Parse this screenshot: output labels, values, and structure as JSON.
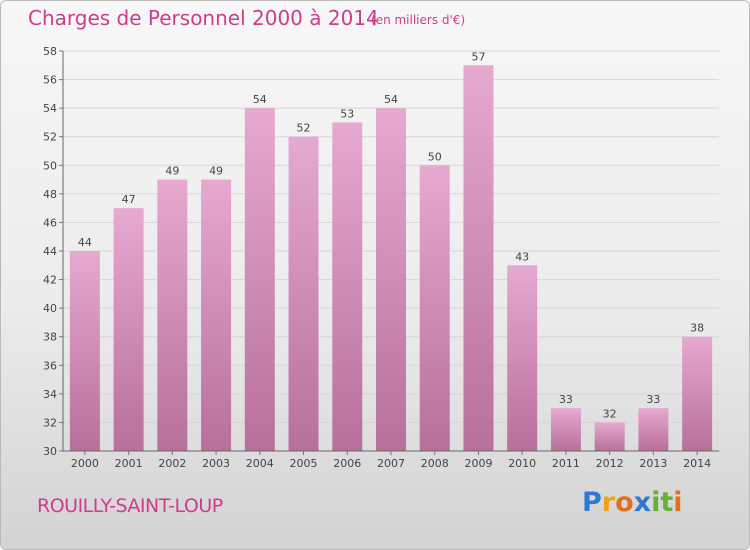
{
  "title": "Charges de Personnel 2000 à 2014",
  "subtitle": "(en milliers d'€)",
  "commune": "ROUILLY-SAINT-LOUP",
  "logo": {
    "letters": [
      "P",
      "r",
      "o",
      "x",
      "i",
      "t",
      "i"
    ],
    "colors": [
      "#2e7ad1",
      "#f0a21b",
      "#e0701e",
      "#2e7ad1",
      "#62b330",
      "#62b330",
      "#e0701e"
    ]
  },
  "colors": {
    "bar": "#d48ab8",
    "text": "#ce3d8c",
    "axis": "#555555"
  },
  "chart_data": {
    "type": "bar",
    "categories": [
      "2000",
      "2001",
      "2002",
      "2003",
      "2004",
      "2005",
      "2006",
      "2007",
      "2008",
      "2009",
      "2010",
      "2011",
      "2012",
      "2013",
      "2014"
    ],
    "values": [
      44,
      47,
      49,
      49,
      54,
      52,
      53,
      54,
      50,
      57,
      43,
      33,
      32,
      33,
      38
    ],
    "ylim": [
      30,
      58
    ],
    "yticks": [
      30,
      32,
      34,
      36,
      38,
      40,
      42,
      44,
      46,
      48,
      50,
      52,
      54,
      56,
      58
    ],
    "grid": true
  }
}
